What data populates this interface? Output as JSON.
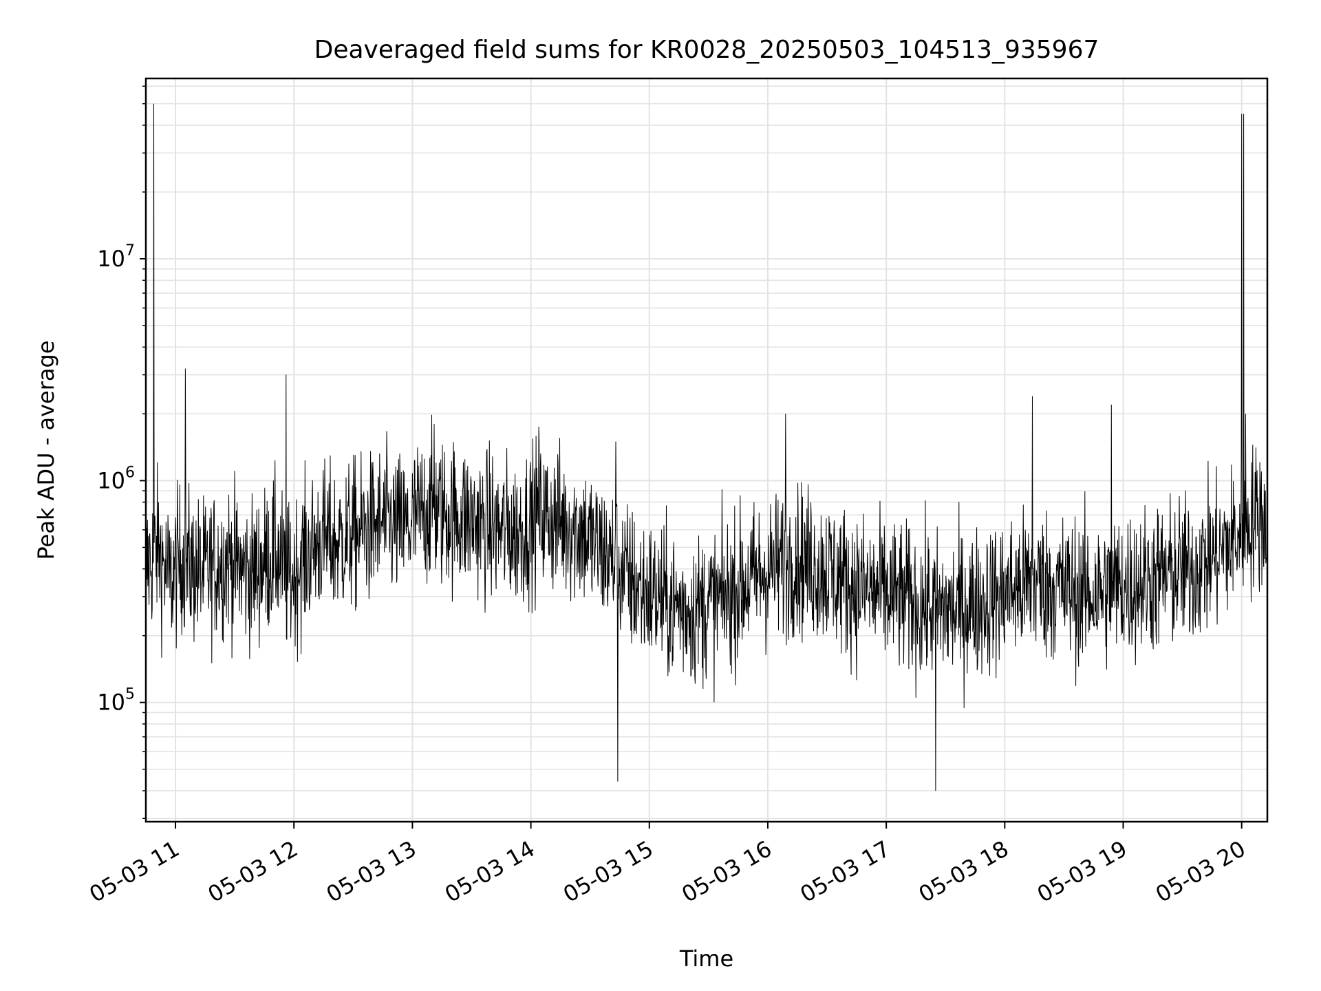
{
  "chart_data": {
    "type": "line",
    "title": "Deaveraged field sums for KR0028_20250503_104513_935967",
    "xlabel": "Time",
    "ylabel": "Peak ADU - average",
    "yscale": "log",
    "xlim": [
      "2025-05-03 10:45",
      "2025-05-03 20:13"
    ],
    "ylim": [
      29000,
      65000000
    ],
    "grid": "major and minor",
    "line_color": "#000000",
    "x_ticks": [
      "05-03 11",
      "05-03 12",
      "05-03 13",
      "05-03 14",
      "05-03 15",
      "05-03 16",
      "05-03 17",
      "05-03 18",
      "05-03 19",
      "05-03 20"
    ],
    "y_ticks": [
      {
        "value": 100000,
        "base": "10",
        "exp": "5"
      },
      {
        "value": 1000000,
        "base": "10",
        "exp": "6"
      },
      {
        "value": 10000000,
        "base": "10",
        "exp": "7"
      }
    ],
    "series": [
      {
        "x": [
          "10:45",
          "10:51",
          "10:57",
          "11:03",
          "11:09",
          "11:15",
          "11:21",
          "11:27",
          "11:33",
          "11:39",
          "11:45",
          "11:51",
          "11:57",
          "12:03",
          "12:09",
          "12:15",
          "12:21",
          "12:27",
          "12:33",
          "12:39",
          "12:45",
          "12:51",
          "12:57",
          "13:03",
          "13:09",
          "13:15",
          "13:21",
          "13:27",
          "13:33",
          "13:39",
          "13:45",
          "13:51",
          "13:57",
          "14:03",
          "14:09",
          "14:15",
          "14:21",
          "14:27",
          "14:33",
          "14:39",
          "14:45",
          "14:51",
          "14:57",
          "15:03",
          "15:09",
          "15:15",
          "15:21",
          "15:27",
          "15:33",
          "15:39",
          "15:45",
          "15:51",
          "15:57",
          "16:03",
          "16:09",
          "16:15",
          "16:21",
          "16:27",
          "16:33",
          "16:39",
          "16:45",
          "16:51",
          "16:57",
          "17:03",
          "17:09",
          "17:15",
          "17:21",
          "17:27",
          "17:33",
          "17:39",
          "17:45",
          "17:51",
          "17:57",
          "18:03",
          "18:09",
          "18:15",
          "18:21",
          "18:27",
          "18:33",
          "18:39",
          "18:45",
          "18:51",
          "18:57",
          "19:03",
          "19:09",
          "19:15",
          "19:21",
          "19:27",
          "19:33",
          "19:39",
          "19:45",
          "19:51",
          "19:57",
          "20:03",
          "20:09",
          "20:13"
        ],
        "values": [
          400000,
          500000,
          350000,
          450000,
          400000,
          380000,
          420000,
          450000,
          400000,
          380000,
          430000,
          480000,
          350000,
          420000,
          500000,
          550000,
          520000,
          550000,
          580000,
          600000,
          650000,
          620000,
          600000,
          700000,
          750000,
          720000,
          700000,
          680000,
          650000,
          620000,
          600000,
          580000,
          620000,
          700000,
          680000,
          650000,
          620000,
          580000,
          500000,
          450000,
          400000,
          350000,
          320000,
          300000,
          280000,
          270000,
          260000,
          270000,
          280000,
          300000,
          330000,
          350000,
          380000,
          400000,
          420000,
          450000,
          420000,
          400000,
          380000,
          350000,
          330000,
          320000,
          310000,
          300000,
          290000,
          280000,
          270000,
          260000,
          260000,
          270000,
          280000,
          290000,
          300000,
          320000,
          330000,
          350000,
          340000,
          330000,
          320000,
          310000,
          310000,
          320000,
          330000,
          340000,
          350000,
          360000,
          370000,
          380000,
          390000,
          420000,
          450000,
          500000,
          550000,
          650000,
          700000,
          650000
        ]
      }
    ],
    "spikes": [
      {
        "x": "10:49",
        "value": 50000000
      },
      {
        "x": "11:05",
        "value": 3200000
      },
      {
        "x": "11:56",
        "value": 3000000
      },
      {
        "x": "13:11",
        "value": 1800000
      },
      {
        "x": "14:04",
        "value": 1750000
      },
      {
        "x": "14:43",
        "value": 1500000
      },
      {
        "x": "14:44",
        "value": 44000
      },
      {
        "x": "16:09",
        "value": 2000000
      },
      {
        "x": "17:25",
        "value": 40000
      },
      {
        "x": "18:14",
        "value": 2400000
      },
      {
        "x": "18:54",
        "value": 2200000
      },
      {
        "x": "20:00",
        "value": 45000000
      },
      {
        "x": "20:01",
        "value": 45000000
      },
      {
        "x": "20:02",
        "value": 2000000
      }
    ]
  }
}
